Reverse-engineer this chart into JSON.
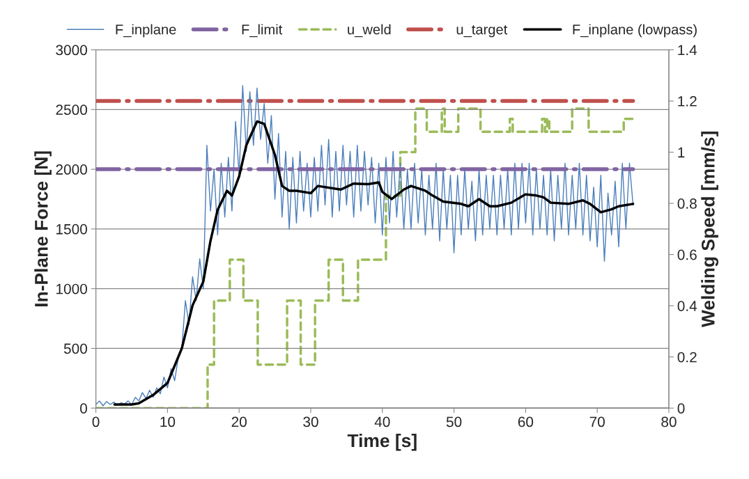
{
  "chart_data": {
    "type": "line",
    "xlabel": "Time [s]",
    "ylabel": "In-Plane Force [N]",
    "y2label": "Welding Speed [mm/s]",
    "xlim": [
      0,
      80
    ],
    "xticks": [
      0,
      10,
      20,
      30,
      40,
      50,
      60,
      70,
      80
    ],
    "ylim": [
      0,
      3000
    ],
    "yticks": [
      0,
      500,
      1000,
      1500,
      2000,
      2500,
      3000
    ],
    "y2lim": [
      0,
      1.4
    ],
    "y2ticks": [
      0,
      {
        "value": 0.2,
        "label": "0.2"
      },
      {
        "value": 0.4,
        "label": "0.4"
      },
      {
        "value": 0.6,
        "label": "0.6"
      },
      {
        "value": 0.8,
        "label": "0.8"
      },
      1,
      {
        "value": 1.2,
        "label": "1.2"
      },
      {
        "value": 1.4,
        "label": "1.4"
      }
    ],
    "grid": "y",
    "legend": "top",
    "marker": "none",
    "series": [
      {
        "name": "F_inplane",
        "color": "#4a7ebb",
        "line_style": "solid",
        "x": [
          0,
          0.5,
          1,
          1.5,
          2,
          2.5,
          3,
          3.5,
          4,
          4.5,
          5,
          5.5,
          6,
          6.5,
          7,
          7.5,
          8,
          8.5,
          9,
          9.5,
          10,
          10.5,
          11,
          11.5,
          12,
          12.5,
          13,
          13.5,
          14,
          14.5,
          15,
          15.5,
          16,
          16.5,
          17,
          17.5,
          18,
          18.5,
          19,
          19.5,
          20,
          20.5,
          21,
          21.5,
          22,
          22.5,
          23,
          23.5,
          24,
          24.5,
          25,
          25.5,
          26,
          26.5,
          27,
          27.5,
          28,
          28.5,
          29,
          29.5,
          30,
          30.5,
          31,
          31.5,
          32,
          32.5,
          33,
          33.5,
          34,
          34.5,
          35,
          35.5,
          36,
          36.5,
          37,
          37.5,
          38,
          38.5,
          39,
          39.5,
          40,
          40.5,
          41,
          41.5,
          42,
          42.5,
          43,
          43.5,
          44,
          44.5,
          45,
          45.5,
          46,
          46.5,
          47,
          47.5,
          48,
          48.5,
          49,
          49.5,
          50,
          50.5,
          51,
          51.5,
          52,
          52.5,
          53,
          53.5,
          54,
          54.5,
          55,
          55.5,
          56,
          56.5,
          57,
          57.5,
          58,
          58.5,
          59,
          59.5,
          60,
          60.5,
          61,
          61.5,
          62,
          62.5,
          63,
          63.5,
          64,
          64.5,
          65,
          65.5,
          66,
          66.5,
          67,
          67.5,
          68,
          68.5,
          69,
          69.5,
          70,
          70.5,
          71,
          71.5,
          72,
          72.5,
          73,
          73.5,
          74,
          74.5,
          75
        ],
        "values": [
          30,
          60,
          20,
          55,
          30,
          50,
          25,
          45,
          35,
          60,
          30,
          90,
          60,
          130,
          80,
          150,
          90,
          170,
          120,
          260,
          170,
          330,
          230,
          420,
          500,
          900,
          700,
          1100,
          900,
          1250,
          1000,
          2200,
          1650,
          2000,
          1450,
          2050,
          1600,
          2100,
          1650,
          2400,
          1950,
          2700,
          2150,
          2650,
          2200,
          2680,
          2250,
          2550,
          2050,
          2450,
          1750,
          2300,
          1600,
          2150,
          1500,
          2100,
          1550,
          2150,
          1650,
          2050,
          1600,
          2100,
          1650,
          2200,
          1700,
          2250,
          1600,
          2150,
          1650,
          2200,
          1700,
          2150,
          1600,
          2200,
          1650,
          2150,
          1700,
          2100,
          1550,
          2050,
          1450,
          2100,
          1550,
          2150,
          1600,
          2050,
          1500,
          2000,
          1500,
          2050,
          1550,
          2000,
          1450,
          1950,
          1500,
          2050,
          1400,
          2000,
          1500,
          1950,
          1300,
          1950,
          1450,
          2000,
          1500,
          1900,
          1400,
          2000,
          1450,
          1950,
          1500,
          1950,
          1450,
          1950,
          1500,
          2000,
          1450,
          2050,
          1500,
          2050,
          1550,
          2050,
          1450,
          2000,
          1500,
          1950,
          1450,
          2000,
          1400,
          1950,
          1500,
          2050,
          1450,
          1950,
          1500,
          2050,
          1450,
          1950,
          1400,
          1850,
          1350,
          1950,
          1230,
          1800,
          1450,
          1900,
          1350,
          2050,
          1500,
          2050,
          1700
        ]
      },
      {
        "name": "F_limit",
        "color": "#8064a2",
        "line_style": "dashdot",
        "x": [
          0,
          75
        ],
        "values": [
          2000,
          2000
        ]
      },
      {
        "name": "u_weld",
        "color": "#9bbb59",
        "line_style": "dashed",
        "axis": "y2",
        "x": [
          0,
          15.6,
          15.6,
          16.5,
          16.5,
          18.7,
          18.7,
          20.6,
          20.6,
          22.6,
          22.6,
          26.7,
          26.7,
          28.6,
          28.6,
          30.6,
          30.6,
          32.5,
          32.5,
          34.5,
          34.5,
          36.6,
          36.6,
          40.5,
          40.5,
          42.5,
          42.5,
          44.6,
          44.6,
          46.2,
          46.2,
          48.3,
          48.3,
          48.7,
          48.7,
          50.6,
          50.6,
          53.7,
          53.7,
          57.8,
          57.8,
          58.2,
          58.2,
          62.3,
          62.3,
          62.7,
          62.7,
          63.0,
          63.0,
          63.3,
          63.3,
          66.5,
          66.5,
          68.8,
          68.8,
          73.7,
          73.7,
          75
        ],
        "values": [
          0,
          0,
          0.17,
          0.17,
          0.42,
          0.42,
          0.58,
          0.58,
          0.42,
          0.42,
          0.17,
          0.17,
          0.42,
          0.42,
          0.17,
          0.17,
          0.42,
          0.42,
          0.58,
          0.58,
          0.42,
          0.42,
          0.58,
          0.58,
          0.83,
          0.83,
          1.0,
          1.0,
          1.17,
          1.17,
          1.08,
          1.08,
          1.17,
          1.17,
          1.08,
          1.08,
          1.17,
          1.17,
          1.08,
          1.08,
          1.13,
          1.13,
          1.08,
          1.08,
          1.13,
          1.13,
          1.08,
          1.08,
          1.13,
          1.13,
          1.08,
          1.08,
          1.17,
          1.17,
          1.08,
          1.08,
          1.13,
          1.13
        ]
      },
      {
        "name": "u_target",
        "color": "#c0504d",
        "line_style": "dashdot",
        "axis": "y2",
        "x": [
          0,
          75
        ],
        "values": [
          1.2,
          1.2
        ]
      },
      {
        "name": "F_inplane (lowpass)",
        "color": "#000000",
        "line_style": "solid",
        "x": [
          2.6,
          5,
          6,
          8,
          10,
          12,
          13.5,
          15,
          16,
          17,
          18.3,
          19,
          20,
          21,
          22.5,
          23.5,
          25,
          26,
          27,
          28,
          30,
          31,
          34.2,
          36,
          38,
          39.5,
          40,
          41.3,
          43,
          44,
          46,
          47,
          48.5,
          51,
          52,
          53.5,
          55,
          56,
          58,
          60,
          61.5,
          62.5,
          63.5,
          66,
          68,
          69,
          70.5,
          72,
          73,
          75
        ],
        "values": [
          30,
          30,
          40,
          110,
          210,
          500,
          860,
          1060,
          1400,
          1660,
          1820,
          1780,
          1940,
          2200,
          2400,
          2380,
          2120,
          1860,
          1820,
          1820,
          1800,
          1860,
          1830,
          1880,
          1875,
          1890,
          1810,
          1750,
          1830,
          1860,
          1820,
          1780,
          1730,
          1710,
          1690,
          1750,
          1690,
          1690,
          1720,
          1790,
          1780,
          1765,
          1720,
          1710,
          1740,
          1710,
          1640,
          1665,
          1690,
          1710
        ]
      }
    ]
  }
}
